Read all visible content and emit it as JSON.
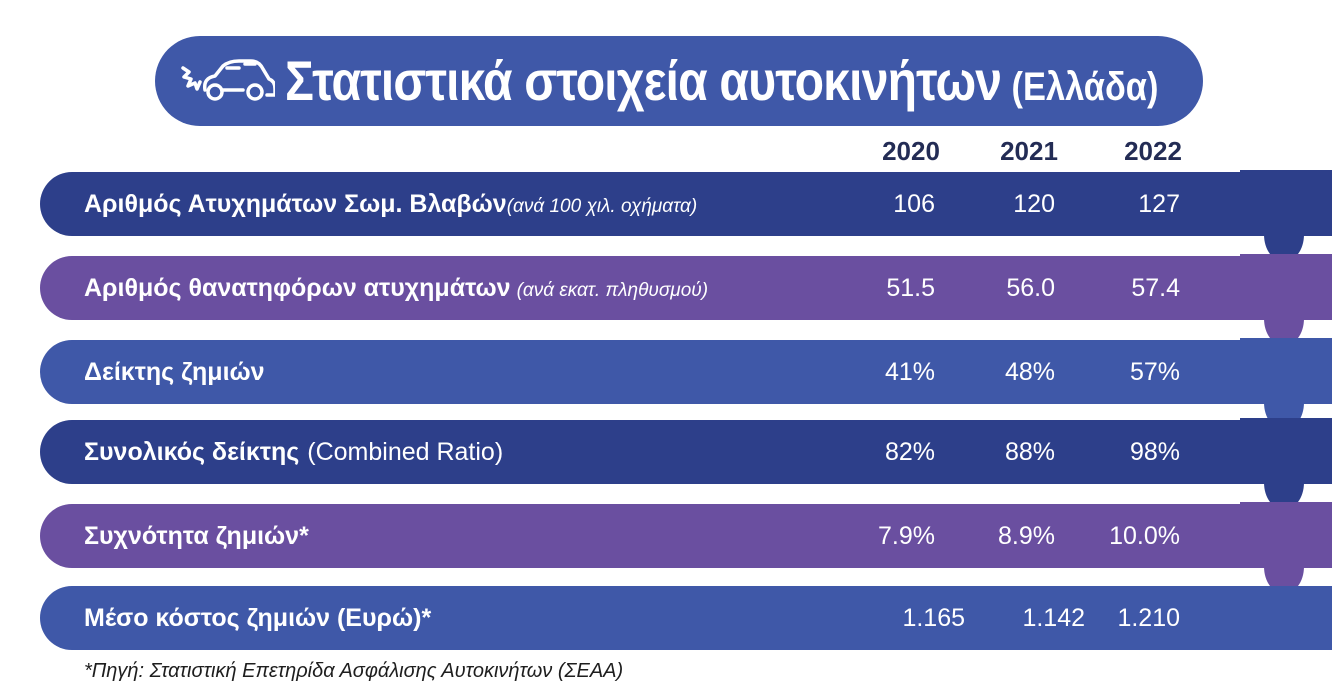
{
  "header": {
    "title": "Στατιστικά στοιχεία αυτοκινήτων",
    "subtitle": "(Ελλάδα)",
    "icon": "car-crash-icon"
  },
  "years": [
    "2020",
    "2021",
    "2022"
  ],
  "rows": [
    {
      "label": "Αριθμός Ατυχημάτων Σωμ. Βλαβών",
      "note": "(ανά 100 χιλ. οχήματα)",
      "values": [
        "106",
        "120",
        "127"
      ]
    },
    {
      "label": "Αριθμός θανατηφόρων ατυχημάτων",
      "note": "(ανά εκατ. πληθυσμού)",
      "values": [
        "51.5",
        "56.0",
        "57.4"
      ]
    },
    {
      "label": "Δείκτης ζημιών",
      "values": [
        "41%",
        "48%",
        "57%"
      ]
    },
    {
      "label": "Συνολικός δείκτης",
      "note": "(Combined Ratio)",
      "values": [
        "82%",
        "88%",
        "98%"
      ]
    },
    {
      "label": "Συχνότητα ζημιών*",
      "values": [
        "7.9%",
        "8.9%",
        "10.0%"
      ]
    },
    {
      "label": "Μέσο κόστος ζημιών (Ευρώ)*",
      "values": [
        "1.165",
        "1.142",
        "1.210"
      ]
    }
  ],
  "source": "*Πηγή: Στατιστική Επετηρίδα Ασφάλισης Αυτοκινήτων (ΣΕΑΑ)",
  "colors": {
    "dark_blue": "#2d3f8a",
    "purple": "#6a4fa0",
    "mid_blue": "#3f58a8",
    "year_text": "#232c55"
  }
}
